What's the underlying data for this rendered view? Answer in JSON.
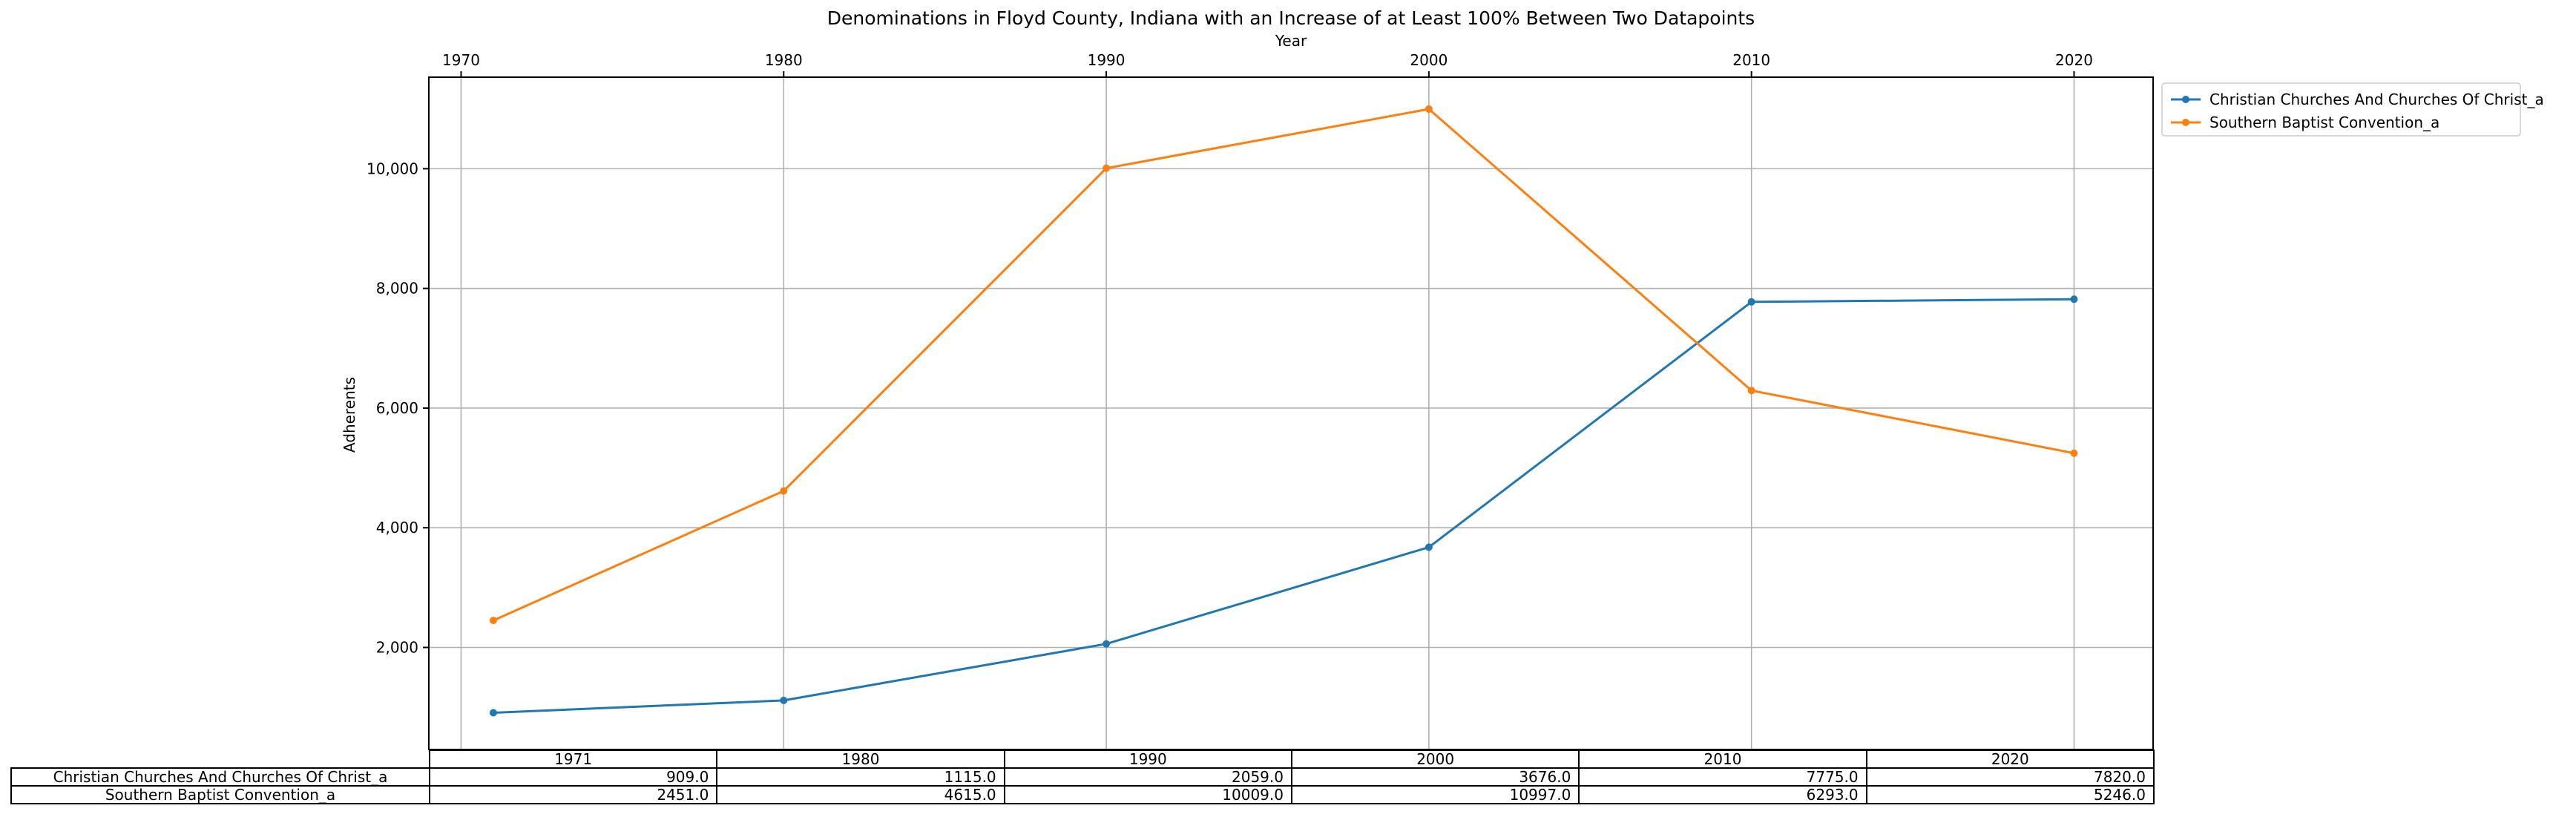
{
  "chart_data": {
    "type": "line",
    "title": "Denominations in Floyd County, Indiana with an Increase of at Least 100% Between Two Datapoints",
    "xlabel": "Year",
    "ylabel": "Adherents",
    "x": [
      1971,
      1980,
      1990,
      2000,
      2010,
      2020
    ],
    "xlim": [
      1969.0,
      2022.45
    ],
    "ylim": [
      295,
      11530
    ],
    "x_ticks": [
      1970,
      1980,
      1990,
      2000,
      2010,
      2020
    ],
    "x_tick_labels": [
      "1970",
      "1980",
      "1990",
      "2000",
      "2010",
      "2020"
    ],
    "y_ticks": [
      2000,
      4000,
      6000,
      8000,
      10000
    ],
    "y_tick_labels": [
      "2,000",
      "4,000",
      "6,000",
      "8,000",
      "10,000"
    ],
    "x_axis_position": "top",
    "grid": true,
    "legend_position": "outside-upper-right",
    "series": [
      {
        "name": "Christian Churches And Churches Of Christ_a",
        "color": "#1f77b4",
        "values": [
          909.0,
          1115.0,
          2059.0,
          3676.0,
          7775.0,
          7820.0
        ]
      },
      {
        "name": "Southern Baptist Convention_a",
        "color": "#ff7f0e",
        "values": [
          2451.0,
          4615.0,
          10009.0,
          10997.0,
          6293.0,
          5246.0
        ]
      }
    ],
    "table": {
      "columns": [
        "1971",
        "1980",
        "1990",
        "2000",
        "2010",
        "2020"
      ],
      "rows": [
        {
          "label": "Christian Churches And Churches Of Christ_a",
          "cells": [
            "909.0",
            "1115.0",
            "2059.0",
            "3676.0",
            "7775.0",
            "7820.0"
          ]
        },
        {
          "label": "Southern Baptist Convention_a",
          "cells": [
            "2451.0",
            "4615.0",
            "10009.0",
            "10997.0",
            "6293.0",
            "5246.0"
          ]
        }
      ]
    }
  }
}
